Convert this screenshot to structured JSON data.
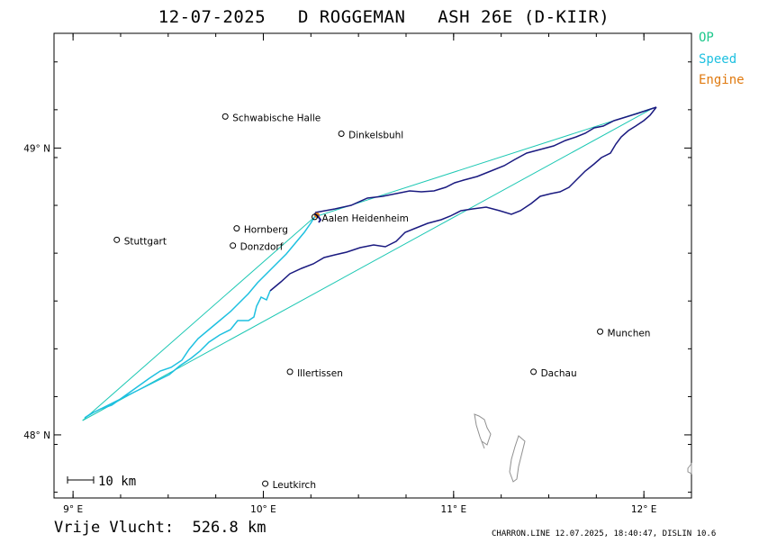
{
  "title": "12-07-2025   D ROGGEMAN   ASH 26E (D-KIIR)",
  "legend": {
    "items": [
      {
        "label": "OP",
        "color": "#1ec88c"
      },
      {
        "label": "Speed",
        "color": "#1ec0e0"
      },
      {
        "label": "Engine",
        "color": "#e07a10"
      }
    ]
  },
  "map": {
    "lon_range": [
      8.9,
      12.25
    ],
    "lat_range": [
      47.78,
      49.4
    ],
    "lon_ticks": [
      {
        "value": 9,
        "label": "9° E"
      },
      {
        "value": 10,
        "label": "10° E"
      },
      {
        "value": 11,
        "label": "11° E"
      },
      {
        "value": 12,
        "label": "12° E"
      }
    ],
    "lat_ticks": [
      {
        "value": 49,
        "label": "49° N"
      },
      {
        "value": 48,
        "label": "48° N"
      }
    ],
    "cities": [
      {
        "name": "Schwabische Halle",
        "lon": 9.8,
        "lat": 49.11
      },
      {
        "name": "Dinkelsbuhl",
        "lon": 10.41,
        "lat": 49.05
      },
      {
        "name": "Aalen Heidenheim",
        "lon": 10.27,
        "lat": 48.76
      },
      {
        "name": "Hornberg",
        "lon": 9.86,
        "lat": 48.72
      },
      {
        "name": "Stuttgart",
        "lon": 9.23,
        "lat": 48.68
      },
      {
        "name": "Donzdorf",
        "lon": 9.84,
        "lat": 48.66
      },
      {
        "name": "Munchen",
        "lon": 11.77,
        "lat": 48.36
      },
      {
        "name": "Illertissen",
        "lon": 10.14,
        "lat": 48.22
      },
      {
        "name": "Dachau",
        "lon": 11.42,
        "lat": 48.22
      },
      {
        "name": "Leutkirch",
        "lon": 10.01,
        "lat": 47.83
      }
    ],
    "scale_label": "10 km",
    "scale_km": 10
  },
  "track": {
    "task_points": [
      {
        "name": "start",
        "lon": 10.27,
        "lat": 48.76
      },
      {
        "name": "tp1",
        "lon": 12.05,
        "lat": 49.14
      },
      {
        "name": "tp2",
        "lon": 9.05,
        "lat": 48.05
      }
    ]
  },
  "footer": {
    "distance_label": "Vrije Vlucht:",
    "distance_value": "526.8 km",
    "credits": "CHARRON.LINE 12.07.2025, 18:40:47, DISLIN 10.6"
  },
  "colors": {
    "task_line": "#1ec8b4",
    "track_speed": "#1ec0e0",
    "track_slow": "#1a1a80",
    "engine": "#e07a10",
    "lakes": "#909090"
  }
}
